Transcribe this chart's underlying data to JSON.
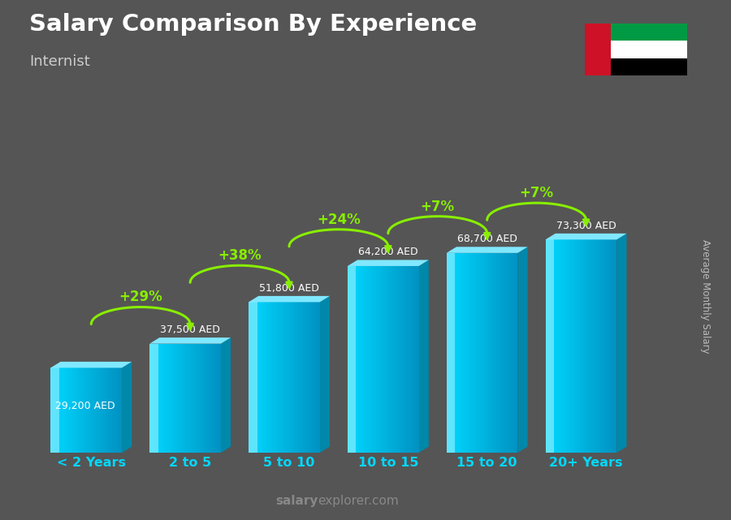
{
  "title": "Salary Comparison By Experience",
  "subtitle": "Internist",
  "ylabel": "Average Monthly Salary",
  "xlabel_labels": [
    "< 2 Years",
    "2 to 5",
    "5 to 10",
    "10 to 15",
    "15 to 20",
    "20+ Years"
  ],
  "values": [
    29200,
    37500,
    51800,
    64200,
    68700,
    73300
  ],
  "value_labels": [
    "29,200 AED",
    "37,500 AED",
    "51,800 AED",
    "64,200 AED",
    "68,700 AED",
    "73,300 AED"
  ],
  "pct_labels": [
    "+29%",
    "+38%",
    "+24%",
    "+7%",
    "+7%"
  ],
  "bar_color_face": "#00c8f0",
  "bar_color_side": "#0088aa",
  "bar_color_top": "#80e8ff",
  "bar_highlight": "#60dfff",
  "bg_color_top": "#555555",
  "bg_color_bot": "#444444",
  "title_color": "#ffffff",
  "subtitle_color": "#cccccc",
  "label_color": "#ffffff",
  "pct_color": "#88ee00",
  "axis_label_color": "#00d8ff",
  "watermark_bold": "salary",
  "watermark_normal": "explorer.com",
  "watermark_color": "#888888",
  "flag_green": "#009A44",
  "flag_white": "#FFFFFF",
  "flag_black": "#000000",
  "flag_red": "#CE1126",
  "ylim_max": 1.3,
  "plot_scale_denom": 84000
}
